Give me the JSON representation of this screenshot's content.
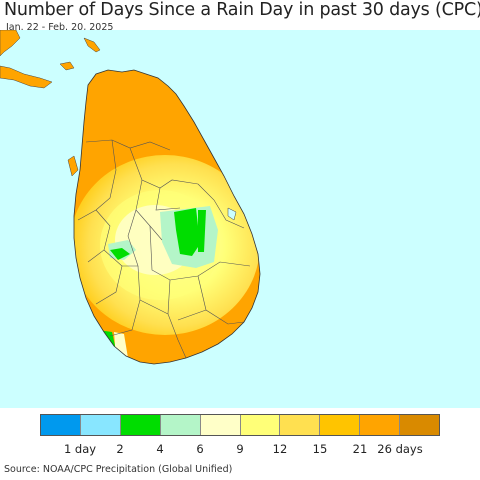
{
  "header": {
    "title": "Number of Days Since a Rain Day in past 30 days (CPC)",
    "date_range": "Jan. 22 - Feb. 20, 2025"
  },
  "legend": {
    "colors": [
      "#0099ee",
      "#88e6ff",
      "#00dd00",
      "#b4f5c8",
      "#ffffc8",
      "#ffff78",
      "#ffe050",
      "#ffc400",
      "#ffa400",
      "#d98a00"
    ],
    "labels": [
      "1 day",
      "2",
      "4",
      "6",
      "9",
      "12",
      "15",
      "21",
      "26 days"
    ]
  },
  "footer": {
    "source": "Source: NOAA/CPC Precipitation (Global Unified)"
  }
}
